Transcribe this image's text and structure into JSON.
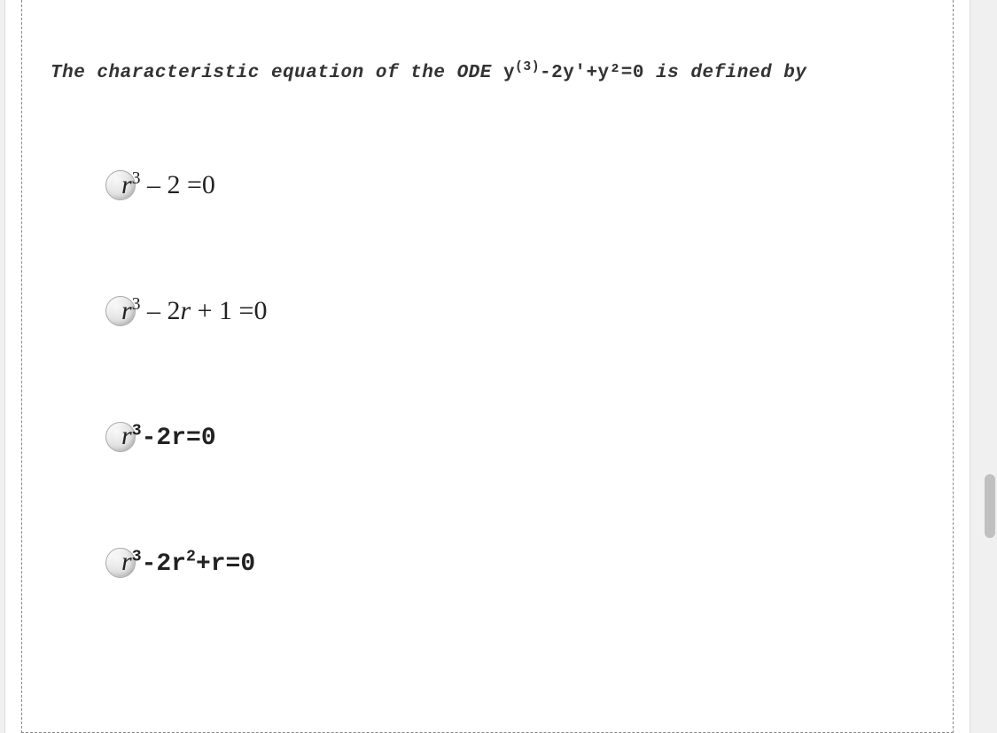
{
  "question": {
    "prefix": "The characteristic equation of the ODE  ",
    "equation_y": "y",
    "equation_sup": "(3)",
    "equation_rest": "-2y'+y²=0",
    "suffix": "  is defined by"
  },
  "options": [
    {
      "id": "opt-a",
      "style": "serif",
      "html": "<span class=\"ital\">r</span><sup>3</sup> – 2 =0"
    },
    {
      "id": "opt-b",
      "style": "serif",
      "html": "<span class=\"ital\">r</span><sup>3</sup> – 2<span class=\"ital\">r</span> + 1 =0"
    },
    {
      "id": "opt-c",
      "style": "mono",
      "html": "<span class=\"serif-r\">r</span><sup>3</sup>-2r=0"
    },
    {
      "id": "opt-d",
      "style": "mono",
      "html": "<span class=\"serif-r\">r</span><sup>3</sup>-2r<sup>2</sup>+r=0"
    }
  ],
  "colors": {
    "background": "#ffffff",
    "text": "#333333",
    "border_dash": "#888888"
  }
}
